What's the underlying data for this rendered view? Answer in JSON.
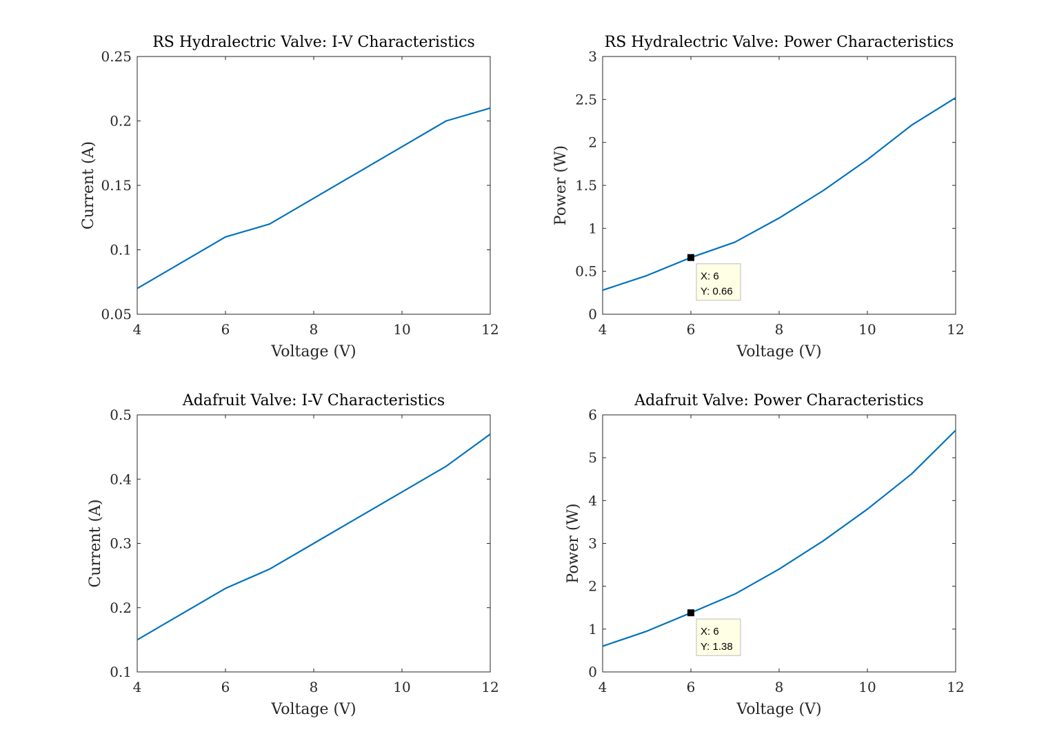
{
  "figure": {
    "background": "#ffffff",
    "line_color": "#0072BD",
    "axis_color": "#262626",
    "datatip_fill": "#FFFFE5",
    "datatip_border": "#BDBDBD"
  },
  "chart_data": [
    {
      "type": "line",
      "title": "RS Hydralectric Valve: I-V Characteristics",
      "xlabel": "Voltage (V)",
      "ylabel": "Current (A)",
      "xlim": [
        4,
        12
      ],
      "ylim": [
        0.05,
        0.25
      ],
      "xticks": [
        "4",
        "6",
        "8",
        "10",
        "12"
      ],
      "yticks": [
        "0.05",
        "0.1",
        "0.15",
        "0.2",
        "0.25"
      ],
      "grid": false,
      "series": [
        {
          "x": [
            4,
            5,
            6,
            7,
            8,
            9,
            10,
            11,
            12
          ],
          "y": [
            0.07,
            0.09,
            0.11,
            0.12,
            0.14,
            0.16,
            0.18,
            0.2,
            0.21
          ]
        }
      ]
    },
    {
      "type": "line",
      "title": "RS Hydralectric Valve: Power Characteristics",
      "xlabel": "Voltage (V)",
      "ylabel": "Power (W)",
      "xlim": [
        4,
        12
      ],
      "ylim": [
        0,
        3
      ],
      "xticks": [
        "4",
        "6",
        "8",
        "10",
        "12"
      ],
      "yticks": [
        "0",
        "0.5",
        "1",
        "1.5",
        "2",
        "2.5",
        "3"
      ],
      "grid": false,
      "series": [
        {
          "x": [
            4,
            5,
            6,
            7,
            8,
            9,
            10,
            11,
            12
          ],
          "y": [
            0.28,
            0.45,
            0.66,
            0.84,
            1.12,
            1.44,
            1.8,
            2.2,
            2.52
          ]
        }
      ],
      "datatip": {
        "x": 6,
        "y": 0.66,
        "x_text": "X: 6",
        "y_text": "Y: 0.66"
      }
    },
    {
      "type": "line",
      "title": "Adafruit Valve: I-V Characteristics",
      "xlabel": "Voltage (V)",
      "ylabel": "Current (A)",
      "xlim": [
        4,
        12
      ],
      "ylim": [
        0.1,
        0.5
      ],
      "xticks": [
        "4",
        "6",
        "8",
        "10",
        "12"
      ],
      "yticks": [
        "0.1",
        "0.2",
        "0.3",
        "0.4",
        "0.5"
      ],
      "grid": false,
      "series": [
        {
          "x": [
            4,
            5,
            6,
            7,
            8,
            9,
            10,
            11,
            12
          ],
          "y": [
            0.15,
            0.19,
            0.23,
            0.26,
            0.3,
            0.34,
            0.38,
            0.42,
            0.47
          ]
        }
      ]
    },
    {
      "type": "line",
      "title": "Adafruit Valve: Power Characteristics",
      "xlabel": "Voltage (V)",
      "ylabel": "Power (W)",
      "xlim": [
        4,
        12
      ],
      "ylim": [
        0,
        6
      ],
      "xticks": [
        "4",
        "6",
        "8",
        "10",
        "12"
      ],
      "yticks": [
        "0",
        "1",
        "2",
        "3",
        "4",
        "5",
        "6"
      ],
      "grid": false,
      "series": [
        {
          "x": [
            4,
            5,
            6,
            7,
            8,
            9,
            10,
            11,
            12
          ],
          "y": [
            0.6,
            0.95,
            1.38,
            1.82,
            2.4,
            3.06,
            3.8,
            4.62,
            5.64
          ]
        }
      ],
      "datatip": {
        "x": 6,
        "y": 1.38,
        "x_text": "X: 6",
        "y_text": "Y: 1.38"
      }
    }
  ]
}
